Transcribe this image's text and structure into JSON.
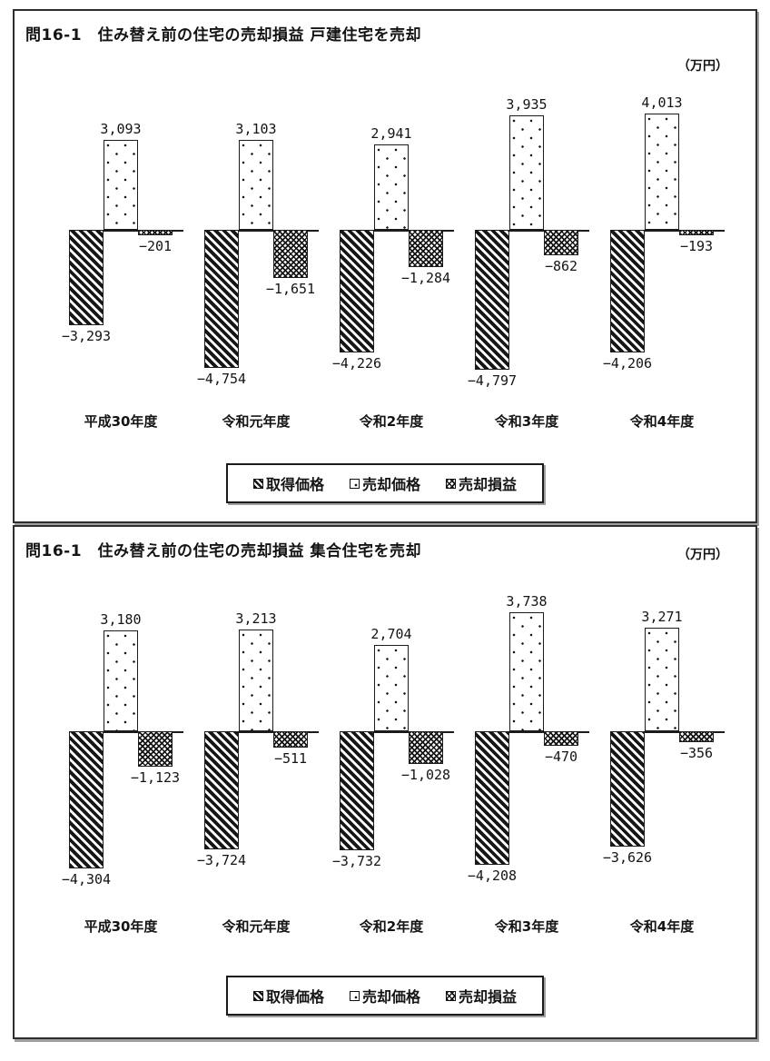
{
  "page": {
    "background": "#ffffff"
  },
  "colors": {
    "ink": "#1b1b1b",
    "panel_border": "#2e2e2e",
    "shadow": "#9f9f9f"
  },
  "chart_data": [
    {
      "type": "bar",
      "title": "問16-1　住み替え前の住宅の売却損益 戸建住宅を売却",
      "unit": "万円",
      "unit_display": "（万円）",
      "categories": [
        "平成30年度",
        "令和元年度",
        "令和2年度",
        "令和3年度",
        "令和4年度"
      ],
      "series": [
        {
          "name": "取得価格",
          "key": "acquisition-price",
          "pattern": "diagonal",
          "values": [
            -3293,
            -4754,
            -4226,
            -4797,
            -4206
          ]
        },
        {
          "name": "売却価格",
          "key": "sale-price",
          "pattern": "dotted",
          "values": [
            3093,
            3103,
            2941,
            3935,
            4013
          ]
        },
        {
          "name": "売却損益",
          "key": "sale-profit-loss",
          "pattern": "cross",
          "values": [
            -201,
            -1651,
            -1284,
            -862,
            -193
          ]
        }
      ],
      "data_labels": [
        "−3,293",
        "3,093",
        "−201",
        "−4,754",
        "3,103",
        "−1,651",
        "−4,226",
        "2,941",
        "−1,284",
        "−4,797",
        "3,935",
        "−862",
        "−4,206",
        "4,013",
        "−193"
      ],
      "ylim": [
        -5000,
        4500
      ],
      "grid": false,
      "axis_line": "zero-baseline-per-group",
      "legend_position": "bottom"
    },
    {
      "type": "bar",
      "title": "問16-1　住み替え前の住宅の売却損益 集合住宅を売却",
      "unit": "万円",
      "unit_display": "（万円）",
      "categories": [
        "平成30年度",
        "令和元年度",
        "令和2年度",
        "令和3年度",
        "令和4年度"
      ],
      "series": [
        {
          "name": "取得価格",
          "key": "acquisition-price",
          "pattern": "diagonal",
          "values": [
            -4304,
            -3724,
            -3732,
            -4208,
            -3626
          ]
        },
        {
          "name": "売却価格",
          "key": "sale-price",
          "pattern": "dotted",
          "values": [
            3180,
            3213,
            2704,
            3738,
            3271
          ]
        },
        {
          "name": "売却損益",
          "key": "sale-profit-loss",
          "pattern": "cross",
          "values": [
            -1123,
            -511,
            -1028,
            -470,
            -356
          ]
        }
      ],
      "data_labels": [
        "−4,304",
        "3,180",
        "−1,123",
        "−3,724",
        "3,213",
        "−511",
        "−3,732",
        "2,704",
        "−1,028",
        "−4,208",
        "3,738",
        "−470",
        "−3,626",
        "3,271",
        "−356"
      ],
      "ylim": [
        -5000,
        4500
      ],
      "grid": false,
      "axis_line": "zero-baseline-per-group",
      "legend_position": "bottom"
    }
  ]
}
